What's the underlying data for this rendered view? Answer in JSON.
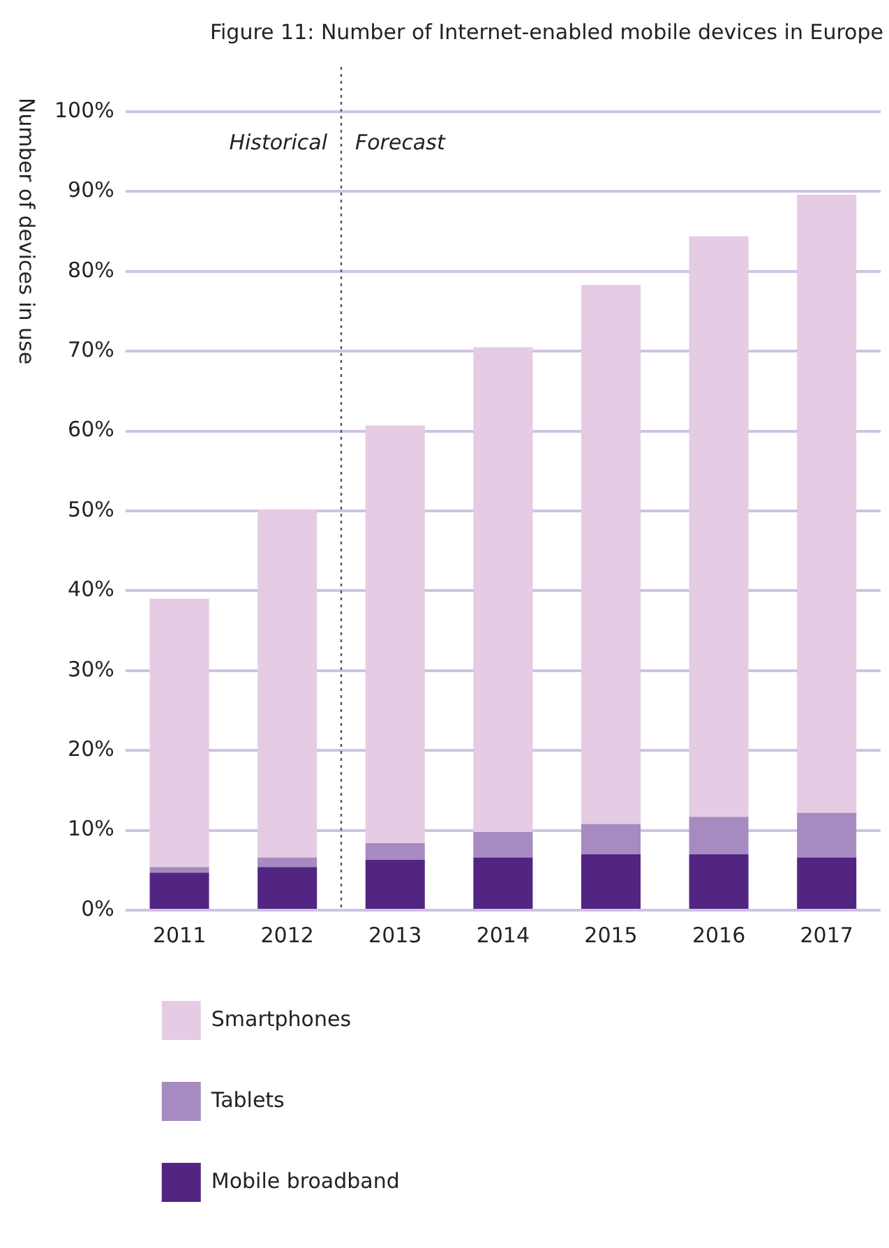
{
  "chart_data": {
    "type": "bar",
    "title": "Figure 11: Number of Internet-enabled mobile devices in Europe",
    "ylabel": "Number of devices in use",
    "x": [
      2011,
      2012,
      2013,
      2014,
      2015,
      2016,
      2017
    ],
    "stacked": true,
    "series": [
      {
        "name": "Mobile broadband",
        "color": "#522582",
        "values": [
          4.7,
          5.4,
          6.3,
          6.6,
          7.0,
          7.0,
          6.6
        ]
      },
      {
        "name": "Tablets",
        "color": "#a58bc0",
        "values": [
          0.7,
          1.2,
          2.1,
          3.2,
          3.8,
          4.7,
          5.6
        ]
      },
      {
        "name": "Smartphones",
        "color": "#e5cbe4",
        "values": [
          33.6,
          43.6,
          52.3,
          60.7,
          67.5,
          72.7,
          77.4
        ]
      }
    ],
    "xlim": [
      2010.5,
      2017.5
    ],
    "xticks": [
      2011,
      2012,
      2013,
      2014,
      2015,
      2016,
      2017
    ],
    "ylim": [
      0,
      100
    ],
    "yticks": [
      {
        "value": 0,
        "label": "0%"
      },
      {
        "value": 10,
        "label": "10%"
      },
      {
        "value": 20,
        "label": "20%"
      },
      {
        "value": 30,
        "label": "30%"
      },
      {
        "value": 40,
        "label": "40%"
      },
      {
        "value": 50,
        "label": "50%"
      },
      {
        "value": 60,
        "label": "60%"
      },
      {
        "value": 70,
        "label": "70%"
      },
      {
        "value": 80,
        "label": "80%"
      },
      {
        "value": 90,
        "label": "90%"
      },
      {
        "value": 100,
        "label": "100%"
      }
    ],
    "grid": "y",
    "legend": "bottom",
    "ref_lines": [
      {
        "axis": "x",
        "value": 2012.5,
        "color": "#555555",
        "line_style": "dotted"
      }
    ],
    "annotations": [
      "Historical",
      "Forecast"
    ]
  }
}
